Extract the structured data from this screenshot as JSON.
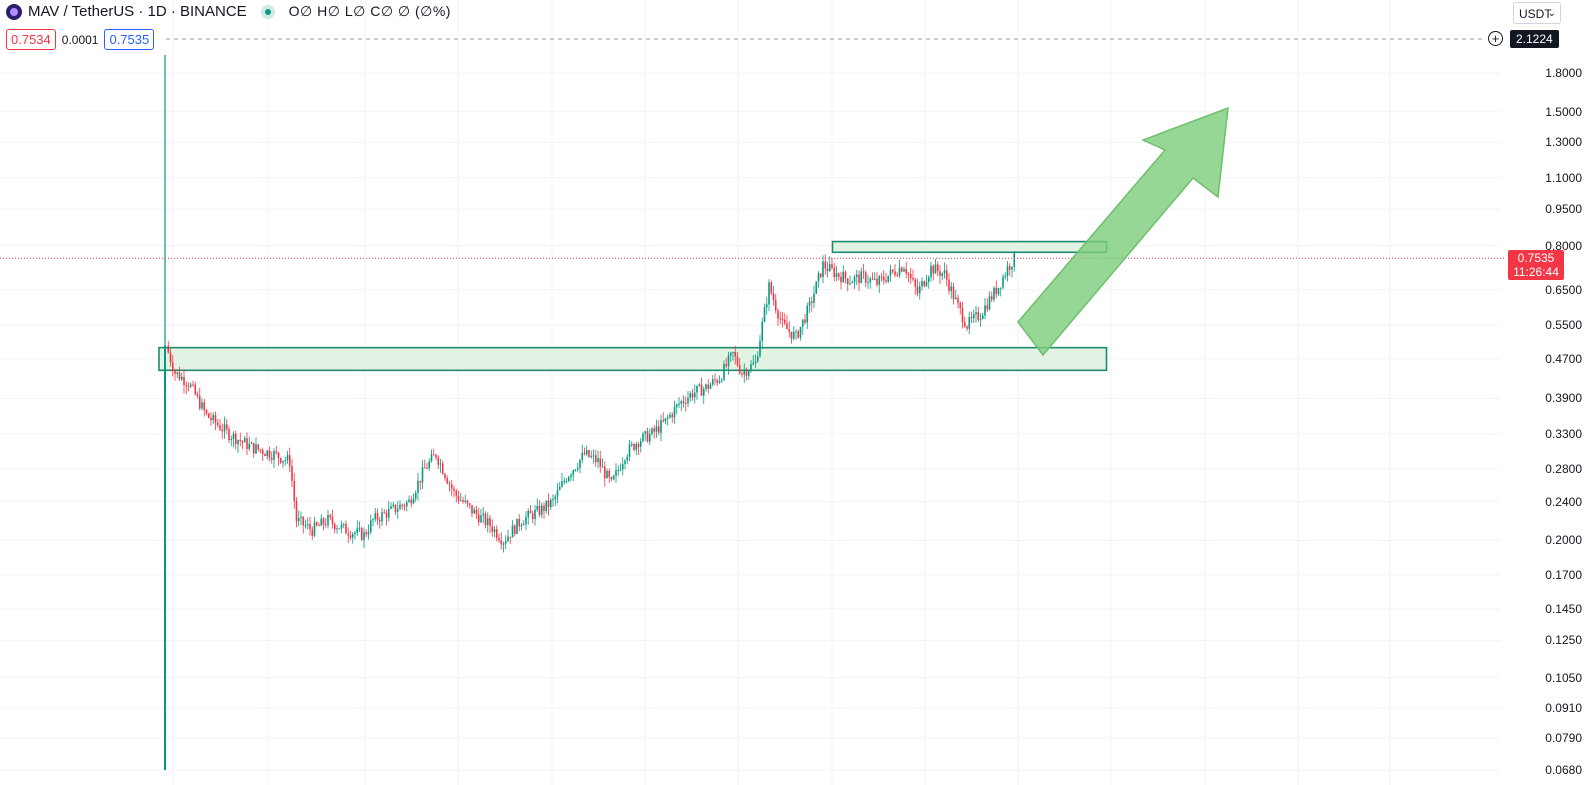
{
  "header": {
    "symbol": "MAV / TetherUS · 1D · BINANCE",
    "ohlc": "O∅ H∅ L∅ C∅ ∅ (∅%)"
  },
  "trade": {
    "sell_price": "0.7534",
    "spread": "0.0001",
    "buy_price": "0.7535"
  },
  "currency_select": {
    "value": "USDT"
  },
  "badges": {
    "high_value": "2.1224",
    "last_price": "0.7535",
    "countdown": "11:26:44"
  },
  "colors": {
    "up": "#089981",
    "down": "#f23645",
    "zone_fill": "#e3f3e3",
    "zone_border": "#1f8a70",
    "arrow": "#7ccd7c",
    "grid": "#f0f3fa"
  },
  "chart_data": {
    "type": "candlestick",
    "title": "MAV / TetherUS · 1D · BINANCE",
    "yscale": "log",
    "ylim": [
      0.068,
      2.0
    ],
    "y_ticks": [
      "1.8000",
      "1.5000",
      "1.3000",
      "1.1000",
      "0.9500",
      "0.8000",
      "0.6500",
      "0.5500",
      "0.4700",
      "0.3900",
      "0.3300",
      "0.2800",
      "0.2400",
      "0.2000",
      "0.1700",
      "0.1450",
      "0.1250",
      "0.1050",
      "0.0910",
      "0.0790",
      "0.0680"
    ],
    "price_path": [
      [
        0,
        0.5
      ],
      [
        4,
        0.44
      ],
      [
        10,
        0.42
      ],
      [
        18,
        0.36
      ],
      [
        28,
        0.33
      ],
      [
        38,
        0.31
      ],
      [
        48,
        0.3
      ],
      [
        55,
        0.29
      ],
      [
        58,
        0.22
      ],
      [
        65,
        0.21
      ],
      [
        72,
        0.22
      ],
      [
        80,
        0.21
      ],
      [
        88,
        0.205
      ],
      [
        92,
        0.22
      ],
      [
        100,
        0.23
      ],
      [
        108,
        0.24
      ],
      [
        115,
        0.28
      ],
      [
        120,
        0.3
      ],
      [
        128,
        0.25
      ],
      [
        136,
        0.23
      ],
      [
        144,
        0.215
      ],
      [
        150,
        0.2
      ],
      [
        158,
        0.22
      ],
      [
        166,
        0.23
      ],
      [
        172,
        0.24
      ],
      [
        178,
        0.27
      ],
      [
        186,
        0.3
      ],
      [
        192,
        0.29
      ],
      [
        198,
        0.26
      ],
      [
        204,
        0.3
      ],
      [
        210,
        0.32
      ],
      [
        216,
        0.33
      ],
      [
        222,
        0.35
      ],
      [
        228,
        0.38
      ],
      [
        234,
        0.4
      ],
      [
        240,
        0.41
      ],
      [
        246,
        0.43
      ],
      [
        252,
        0.48
      ],
      [
        256,
        0.44
      ],
      [
        262,
        0.46
      ],
      [
        268,
        0.66
      ],
      [
        274,
        0.55
      ],
      [
        280,
        0.52
      ],
      [
        286,
        0.6
      ],
      [
        292,
        0.73
      ],
      [
        298,
        0.7
      ],
      [
        304,
        0.68
      ],
      [
        310,
        0.69
      ],
      [
        316,
        0.67
      ],
      [
        322,
        0.7
      ],
      [
        328,
        0.73
      ],
      [
        334,
        0.64
      ],
      [
        340,
        0.72
      ],
      [
        346,
        0.7
      ],
      [
        352,
        0.6
      ],
      [
        356,
        0.55
      ],
      [
        362,
        0.58
      ],
      [
        366,
        0.62
      ],
      [
        370,
        0.66
      ],
      [
        374,
        0.72
      ],
      [
        377,
        0.7535
      ]
    ],
    "candle_count": 378,
    "zones": [
      {
        "name": "resistance",
        "from": 0.775,
        "to": 0.815,
        "start_bar": 298,
        "end_bar": 418
      },
      {
        "name": "support",
        "from": 0.445,
        "to": 0.495,
        "start_bar": 0,
        "end_bar": 418
      }
    ],
    "last_price": 0.7535,
    "high_line": 2.1224,
    "grid": true
  }
}
